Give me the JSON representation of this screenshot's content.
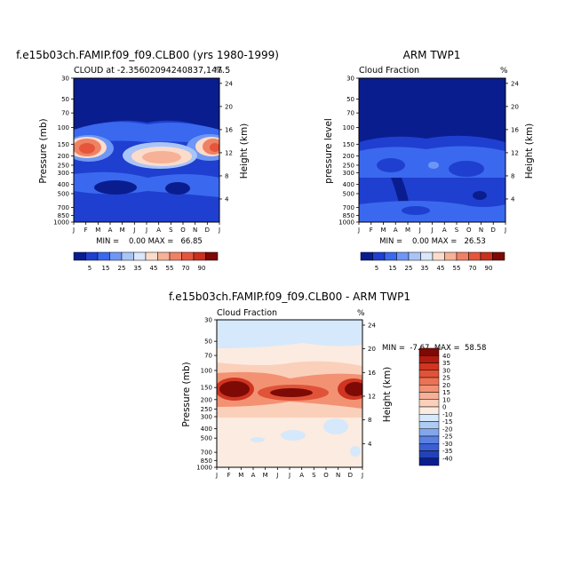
{
  "chart_data": [
    {
      "type": "heatmap",
      "title": "f.e15b03ch.FAMIP.f09_f09.CLB00 (yrs 1980-1999)",
      "subtitle": "CLOUD at -2.35602094240837,147.5",
      "units": "%",
      "ylabel": "Pressure (mb)",
      "y2label": "Height (km)",
      "x_ticks": [
        "J",
        "F",
        "M",
        "A",
        "M",
        "J",
        "J",
        "A",
        "S",
        "O",
        "N",
        "D",
        "J"
      ],
      "y_ticks": [
        "30",
        "50",
        "70",
        "100",
        "150",
        "200",
        "250",
        "300",
        "400",
        "500",
        "700",
        "850",
        "1000"
      ],
      "y2_ticks": [
        "24",
        "20",
        "16",
        "12",
        "8",
        "4"
      ],
      "stats": "MIN =    0.00 MAX =   66.85",
      "colorbar": [
        "5",
        "15",
        "25",
        "35",
        "45",
        "55",
        "70",
        "90"
      ],
      "colorbar_colors": [
        "#0a1d8f",
        "#1f3fd0",
        "#3a68ee",
        "#6e97f5",
        "#a9c5f8",
        "#dae7fb",
        "#fbdccb",
        "#f6b197",
        "#ef8164",
        "#e5553c",
        "#c9301e",
        "#7d0a05"
      ]
    },
    {
      "type": "heatmap",
      "title": "ARM TWP1",
      "subtitle": "Cloud Fraction",
      "units": "%",
      "ylabel": "pressure level",
      "y2label": "Height (km)",
      "x_ticks": [
        "J",
        "F",
        "M",
        "A",
        "M",
        "J",
        "J",
        "A",
        "S",
        "O",
        "N",
        "D",
        "J"
      ],
      "y_ticks": [
        "30",
        "50",
        "70",
        "100",
        "150",
        "200",
        "250",
        "300",
        "400",
        "500",
        "700",
        "850",
        "1000"
      ],
      "y2_ticks": [
        "24",
        "20",
        "16",
        "12",
        "8",
        "4"
      ],
      "stats": "MIN =    0.00 MAX =   26.53",
      "colorbar": [
        "5",
        "15",
        "25",
        "35",
        "45",
        "55",
        "70",
        "90"
      ],
      "colorbar_colors": [
        "#0a1d8f",
        "#1f3fd0",
        "#3a68ee",
        "#6e97f5",
        "#a9c5f8",
        "#dae7fb",
        "#fbdccb",
        "#f6b197",
        "#ef8164",
        "#e5553c",
        "#c9301e",
        "#7d0a05"
      ]
    },
    {
      "type": "heatmap",
      "title": "f.e15b03ch.FAMIP.f09_f09.CLB00 - ARM TWP1",
      "subtitle": "Cloud Fraction",
      "units": "%",
      "ylabel": "Pressure (mb)",
      "y2label": "Height (km)",
      "x_ticks": [
        "J",
        "F",
        "M",
        "A",
        "M",
        "J",
        "J",
        "A",
        "S",
        "O",
        "N",
        "D",
        "J"
      ],
      "y_ticks": [
        "30",
        "50",
        "70",
        "100",
        "150",
        "200",
        "250",
        "300",
        "400",
        "500",
        "700",
        "850",
        "1000"
      ],
      "y2_ticks": [
        "24",
        "20",
        "16",
        "12",
        "8",
        "4"
      ],
      "stats": "MIN =  -7.67  MAX =  58.58",
      "colorbar": [
        "40",
        "35",
        "30",
        "25",
        "20",
        "15",
        "10",
        "0",
        "-10",
        "-15",
        "-20",
        "-25",
        "-30",
        "-35",
        "-40"
      ],
      "colorbar_colors": [
        "#7d0a05",
        "#b21c0e",
        "#cf3520",
        "#e15338",
        "#ec7254",
        "#f39173",
        "#f7b096",
        "#fad0bb",
        "#fcebe0",
        "#d6e8fb",
        "#aecbf4",
        "#82a6ec",
        "#5a80e2",
        "#3b5fd2",
        "#2342b8",
        "#0a1d8f"
      ]
    }
  ]
}
